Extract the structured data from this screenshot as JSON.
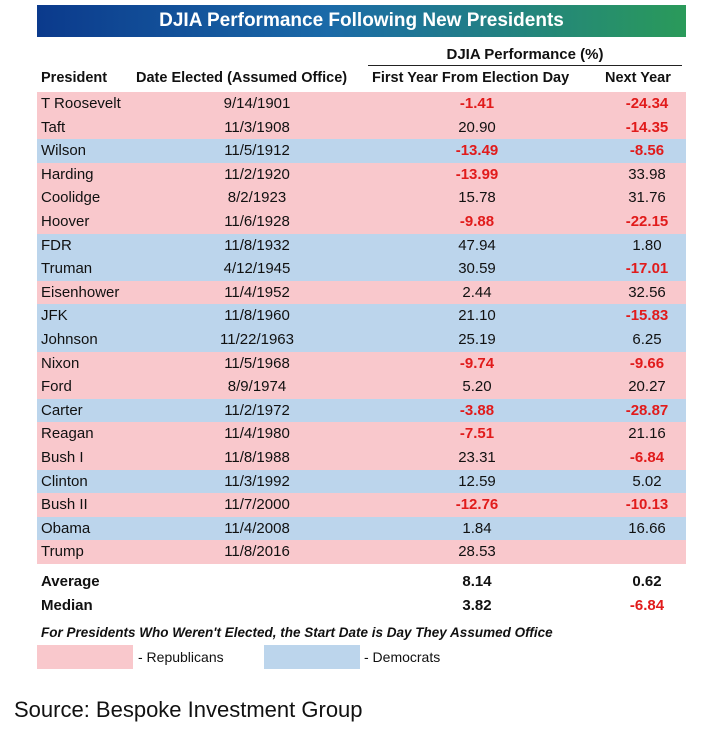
{
  "title": "DJIA Performance Following New Presidents",
  "group_header": "DJIA Performance (%)",
  "headers": {
    "president": "President",
    "date": "Date Elected (Assumed Office)",
    "first_year": "First Year From Election Day",
    "next_year": "Next Year"
  },
  "chart_data": {
    "type": "table",
    "title": "DJIA Performance Following New Presidents",
    "columns": [
      "President",
      "Date Elected (Assumed Office)",
      "First Year From Election Day",
      "Next Year"
    ],
    "rows": [
      {
        "president": "T Roosevelt",
        "date": "9/14/1901",
        "first": "-1.41",
        "next": "-24.34",
        "party": "R"
      },
      {
        "president": "Taft",
        "date": "11/3/1908",
        "first": "20.90",
        "next": "-14.35",
        "party": "R"
      },
      {
        "president": "Wilson",
        "date": "11/5/1912",
        "first": "-13.49",
        "next": "-8.56",
        "party": "D"
      },
      {
        "president": "Harding",
        "date": "11/2/1920",
        "first": "-13.99",
        "next": "33.98",
        "party": "R"
      },
      {
        "president": "Coolidge",
        "date": "8/2/1923",
        "first": "15.78",
        "next": "31.76",
        "party": "R"
      },
      {
        "president": "Hoover",
        "date": "11/6/1928",
        "first": "-9.88",
        "next": "-22.15",
        "party": "R"
      },
      {
        "president": "FDR",
        "date": "11/8/1932",
        "first": "47.94",
        "next": "1.80",
        "party": "D"
      },
      {
        "president": "Truman",
        "date": "4/12/1945",
        "first": "30.59",
        "next": "-17.01",
        "party": "D"
      },
      {
        "president": "Eisenhower",
        "date": "11/4/1952",
        "first": "2.44",
        "next": "32.56",
        "party": "R"
      },
      {
        "president": "JFK",
        "date": "11/8/1960",
        "first": "21.10",
        "next": "-15.83",
        "party": "D"
      },
      {
        "president": "Johnson",
        "date": "11/22/1963",
        "first": "25.19",
        "next": "6.25",
        "party": "D"
      },
      {
        "president": "Nixon",
        "date": "11/5/1968",
        "first": "-9.74",
        "next": "-9.66",
        "party": "R"
      },
      {
        "president": "Ford",
        "date": "8/9/1974",
        "first": "5.20",
        "next": "20.27",
        "party": "R"
      },
      {
        "president": "Carter",
        "date": "11/2/1972",
        "first": "-3.88",
        "next": "-28.87",
        "party": "D"
      },
      {
        "president": "Reagan",
        "date": "11/4/1980",
        "first": "-7.51",
        "next": "21.16",
        "party": "R"
      },
      {
        "president": "Bush I",
        "date": "11/8/1988",
        "first": "23.31",
        "next": "-6.84",
        "party": "R"
      },
      {
        "president": "Clinton",
        "date": "11/3/1992",
        "first": "12.59",
        "next": "5.02",
        "party": "D"
      },
      {
        "president": "Bush II",
        "date": "11/7/2000",
        "first": "-12.76",
        "next": "-10.13",
        "party": "R"
      },
      {
        "president": "Obama",
        "date": "11/4/2008",
        "first": "1.84",
        "next": "16.66",
        "party": "D"
      },
      {
        "president": "Trump",
        "date": "11/8/2016",
        "first": "28.53",
        "next": "",
        "party": "R"
      }
    ],
    "summary": [
      {
        "label": "Average",
        "first": "8.14",
        "next": "0.62"
      },
      {
        "label": "Median",
        "first": "3.82",
        "next": "-6.84"
      }
    ]
  },
  "note": "For Presidents Who Weren't Elected, the Start Date is Day They Assumed Office",
  "legend": {
    "republicans": "- Republicans",
    "democrats": "- Democrats"
  },
  "colors": {
    "republican": "#f9c8cc",
    "democrat": "#bcd5ec",
    "negative": "#e11b1b"
  },
  "source": "Source: Bespoke Investment Group"
}
